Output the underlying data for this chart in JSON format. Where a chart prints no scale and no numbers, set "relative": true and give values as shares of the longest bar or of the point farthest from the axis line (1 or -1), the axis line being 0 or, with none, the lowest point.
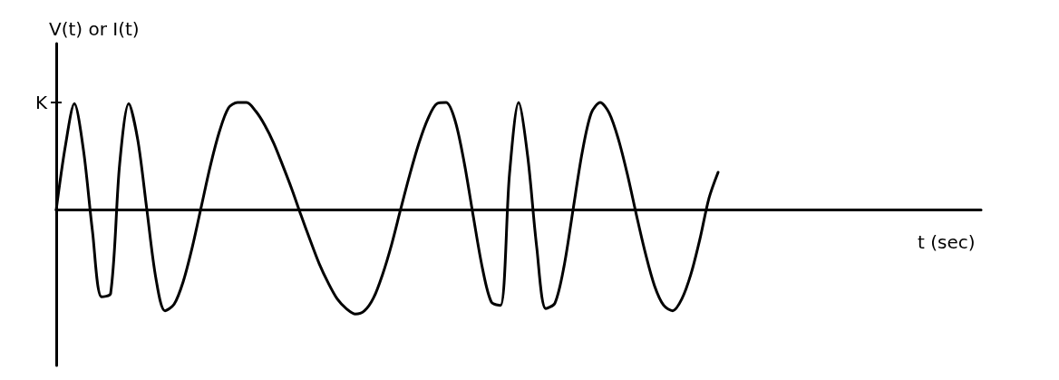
{
  "chart_data": {
    "type": "line",
    "relative": true,
    "xlabel": "t (sec)",
    "ylabel": "V(t) or I(t)",
    "categories": [
      null,
      null,
      null,
      null,
      null,
      null,
      null,
      null,
      null,
      null,
      null,
      null,
      null,
      null,
      null,
      null,
      null,
      null,
      null,
      null,
      null,
      null,
      null,
      null,
      null,
      null,
      null,
      null,
      null,
      null,
      null,
      null,
      null,
      null,
      null,
      null,
      null,
      null,
      null,
      null,
      null,
      null,
      null,
      null,
      null,
      null,
      null,
      null,
      null,
      null,
      null,
      null,
      null,
      null,
      null,
      null,
      null,
      null,
      null,
      null,
      null,
      null,
      null,
      null,
      null,
      null,
      null,
      null,
      null,
      null,
      null,
      null,
      null,
      null,
      null,
      null,
      null,
      null,
      null,
      null,
      null,
      null,
      null,
      null,
      null,
      null,
      null,
      null,
      null,
      null,
      null,
      null,
      null,
      null,
      null,
      null,
      null,
      null,
      null,
      null,
      null,
      null,
      null
    ],
    "series": [
      {
        "color": "#000000",
        "values": [
          0,
          0.59,
          0.99,
          0.56,
          -0.2,
          -0.81,
          -0.78,
          0.43,
          0.99,
          0.65,
          0.0,
          -0.64,
          -0.94,
          -0.88,
          -0.67,
          -0.35,
          0.03,
          0.41,
          0.73,
          0.95,
          1.0,
          1.0,
          0.92,
          0.79,
          0.62,
          0.41,
          0.19,
          -0.05,
          -0.28,
          -0.5,
          -0.68,
          -0.83,
          -0.92,
          -0.97,
          -0.94,
          -0.82,
          -0.6,
          -0.32,
          0.01,
          0.33,
          0.62,
          0.85,
          0.99,
          1.0,
          0.83,
          0.44,
          -0.06,
          -0.54,
          -0.86,
          -0.89,
          0.34,
          1.0,
          0.5,
          -0.35,
          -0.92,
          -0.87,
          -0.53,
          0.0,
          0.53,
          0.9,
          1.0,
          0.9,
          0.66,
          0.33,
          -0.05,
          -0.41,
          -0.71,
          -0.89,
          -0.94,
          -0.83,
          -0.6,
          -0.27,
          0.11,
          0.35,
          null,
          null,
          null,
          null,
          null,
          null,
          null,
          null,
          null,
          null,
          null,
          null,
          null,
          null,
          null,
          null,
          null,
          null,
          null,
          null,
          null,
          null,
          null,
          null,
          null,
          null,
          null,
          null,
          null
        ]
      }
    ],
    "annotations": [
      "K"
    ],
    "grid": false,
    "marker": "none",
    "line_style": "solid"
  }
}
